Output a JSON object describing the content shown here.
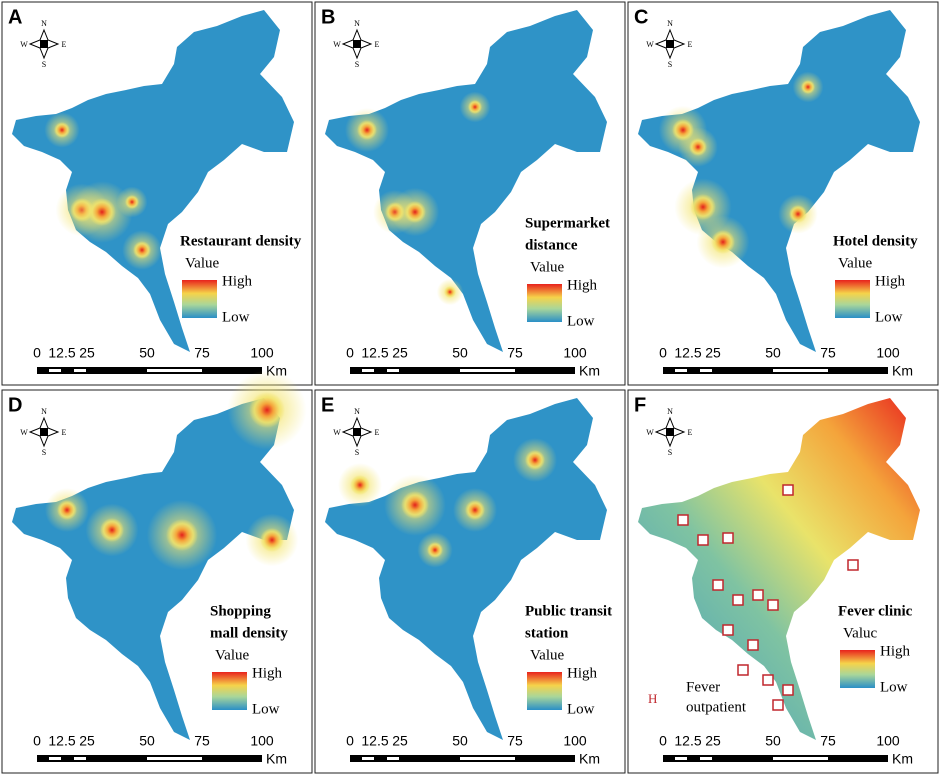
{
  "panels": [
    {
      "letter": "A",
      "title_lines": [
        "Restaurant density"
      ],
      "value_label": "Value",
      "high": "High",
      "low": "Low"
    },
    {
      "letter": "B",
      "title_lines": [
        "Supermarket",
        "distance"
      ],
      "value_label": "Value",
      "high": "High",
      "low": "Low"
    },
    {
      "letter": "C",
      "title_lines": [
        "Hotel density"
      ],
      "value_label": "Value",
      "high": "High",
      "low": "Low"
    },
    {
      "letter": "D",
      "title_lines": [
        "Shopping",
        "mall density"
      ],
      "value_label": "Value",
      "high": "High",
      "low": "Low"
    },
    {
      "letter": "E",
      "title_lines": [
        "Public transit",
        "station"
      ],
      "value_label": "Value",
      "high": "High",
      "low": "Low"
    },
    {
      "letter": "F",
      "title_lines": [
        "Fever clinic"
      ],
      "value_label": "Valuc",
      "high": "High",
      "low": "Low",
      "marker_symbol": "H",
      "marker_label_lines": [
        "Fever",
        "outpatient"
      ]
    }
  ],
  "compass": {
    "north": "N",
    "south": "S",
    "west": "W",
    "east": "E"
  },
  "scale": {
    "labels": [
      "0",
      "12.5",
      "25",
      "50",
      "75",
      "100"
    ],
    "unit": "Km"
  }
}
